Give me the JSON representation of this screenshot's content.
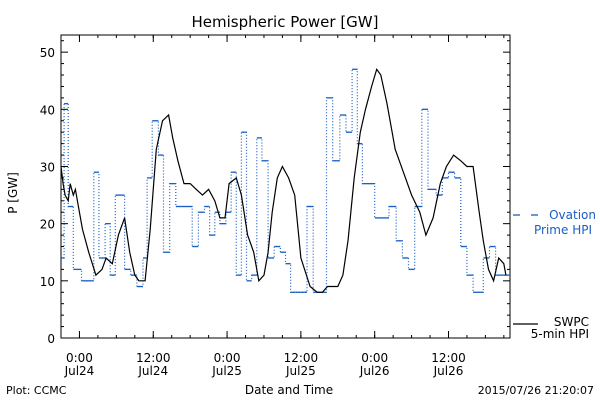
{
  "chart_data": {
    "type": "line",
    "title": "Hemispheric Power [GW]",
    "xlabel": "Date and Time",
    "ylabel": "P [GW]",
    "xlim": [
      "2015-07-23T21:00",
      "2015-07-26T22:00"
    ],
    "ylim": [
      0,
      53
    ],
    "y_ticks": [
      0,
      10,
      20,
      30,
      40,
      50
    ],
    "x_ticks": [
      {
        "t": "2015-07-24T00:00",
        "line1": "0:00",
        "line2": "Jul24"
      },
      {
        "t": "2015-07-24T12:00",
        "line1": "12:00",
        "line2": "Jul24"
      },
      {
        "t": "2015-07-25T00:00",
        "line1": "0:00",
        "line2": "Jul25"
      },
      {
        "t": "2015-07-25T12:00",
        "line1": "12:00",
        "line2": "Jul25"
      },
      {
        "t": "2015-07-26T00:00",
        "line1": "0:00",
        "line2": "Jul26"
      },
      {
        "t": "2015-07-26T12:00",
        "line1": "12:00",
        "line2": "Jul26"
      }
    ],
    "grid": false,
    "series": [
      {
        "name": "Ovation Prime HPI",
        "label_lines": [
          "Ovation",
          "Prime HPI"
        ],
        "color": "#1a5fc4",
        "style": "dotted-step",
        "x": [
          "2015-07-23T21:00",
          "2015-07-23T21:30",
          "2015-07-23T22:10",
          "2015-07-23T23:00",
          "2015-07-24T00:20",
          "2015-07-24T02:20",
          "2015-07-24T03:10",
          "2015-07-24T04:10",
          "2015-07-24T05:00",
          "2015-07-24T05:50",
          "2015-07-24T07:20",
          "2015-07-24T08:20",
          "2015-07-24T09:20",
          "2015-07-24T10:20",
          "2015-07-24T11:00",
          "2015-07-24T11:50",
          "2015-07-24T12:50",
          "2015-07-24T13:40",
          "2015-07-24T14:40",
          "2015-07-24T15:40",
          "2015-07-24T16:40",
          "2015-07-24T18:20",
          "2015-07-24T19:20",
          "2015-07-24T20:20",
          "2015-07-24T21:10",
          "2015-07-24T22:00",
          "2015-07-24T22:50",
          "2015-07-24T23:50",
          "2015-07-25T00:40",
          "2015-07-25T01:30",
          "2015-07-25T02:20",
          "2015-07-25T03:10",
          "2015-07-25T04:00",
          "2015-07-25T04:50",
          "2015-07-25T05:40",
          "2015-07-25T06:40",
          "2015-07-25T07:40",
          "2015-07-25T08:40",
          "2015-07-25T09:30",
          "2015-07-25T10:20",
          "2015-07-25T11:10",
          "2015-07-25T12:00",
          "2015-07-25T13:00",
          "2015-07-25T14:00",
          "2015-07-25T16:10",
          "2015-07-25T17:10",
          "2015-07-25T18:20",
          "2015-07-25T19:20",
          "2015-07-25T20:20",
          "2015-07-25T21:10",
          "2015-07-25T22:00",
          "2015-07-25T23:00",
          "2015-07-26T00:00",
          "2015-07-26T02:20",
          "2015-07-26T03:30",
          "2015-07-26T04:30",
          "2015-07-26T05:30",
          "2015-07-26T06:30",
          "2015-07-26T07:40",
          "2015-07-26T08:40",
          "2015-07-26T10:00",
          "2015-07-26T11:00",
          "2015-07-26T12:00",
          "2015-07-26T13:00",
          "2015-07-26T14:00",
          "2015-07-26T15:00",
          "2015-07-26T16:00",
          "2015-07-26T17:40",
          "2015-07-26T18:40",
          "2015-07-26T19:40",
          "2015-07-26T20:40",
          "2015-07-26T21:40"
        ],
        "values": [
          14,
          41,
          23,
          12,
          10,
          29,
          14,
          20,
          11,
          25,
          12,
          11,
          9,
          14,
          28,
          38,
          32,
          15,
          27,
          23,
          23,
          16,
          22,
          23,
          18,
          22,
          20,
          22,
          29,
          11,
          36,
          10,
          11,
          35,
          31,
          14,
          16,
          15,
          13,
          8,
          8,
          8,
          23,
          8,
          42,
          31,
          39,
          36,
          47,
          34,
          27,
          27,
          21,
          23,
          17,
          14,
          12,
          23,
          40,
          26,
          25,
          28,
          29,
          28,
          16,
          11,
          8,
          14,
          16,
          11,
          11,
          11
        ]
      },
      {
        "name": "SWPC 5-min HPI",
        "label_lines": [
          "SWPC",
          "5-min HPI"
        ],
        "color": "#000000",
        "style": "solid",
        "x": [
          "2015-07-23T21:00",
          "2015-07-23T21:20",
          "2015-07-23T21:40",
          "2015-07-23T22:10",
          "2015-07-23T22:30",
          "2015-07-23T23:00",
          "2015-07-23T23:20",
          "2015-07-23T23:50",
          "2015-07-24T00:30",
          "2015-07-24T01:30",
          "2015-07-24T02:40",
          "2015-07-24T03:40",
          "2015-07-24T04:20",
          "2015-07-24T05:20",
          "2015-07-24T06:20",
          "2015-07-24T07:20",
          "2015-07-24T08:10",
          "2015-07-24T09:00",
          "2015-07-24T09:40",
          "2015-07-24T10:40",
          "2015-07-24T11:30",
          "2015-07-24T12:30",
          "2015-07-24T13:30",
          "2015-07-24T14:30",
          "2015-07-24T15:10",
          "2015-07-24T16:00",
          "2015-07-24T17:00",
          "2015-07-24T18:00",
          "2015-07-24T19:00",
          "2015-07-24T20:00",
          "2015-07-24T21:00",
          "2015-07-24T22:00",
          "2015-07-24T22:50",
          "2015-07-24T23:40",
          "2015-07-25T00:20",
          "2015-07-25T01:30",
          "2015-07-25T02:20",
          "2015-07-25T03:20",
          "2015-07-25T04:20",
          "2015-07-25T05:10",
          "2015-07-25T06:00",
          "2015-07-25T06:40",
          "2015-07-25T07:20",
          "2015-07-25T08:10",
          "2015-07-25T09:00",
          "2015-07-25T10:00",
          "2015-07-25T11:00",
          "2015-07-25T12:00",
          "2015-07-25T13:30",
          "2015-07-25T14:40",
          "2015-07-25T15:30",
          "2015-07-25T16:20",
          "2015-07-25T17:10",
          "2015-07-25T18:00",
          "2015-07-25T18:50",
          "2015-07-25T19:40",
          "2015-07-25T20:40",
          "2015-07-25T21:40",
          "2015-07-25T22:30",
          "2015-07-25T23:30",
          "2015-07-26T00:20",
          "2015-07-26T01:00",
          "2015-07-26T02:00",
          "2015-07-26T03:20",
          "2015-07-26T04:40",
          "2015-07-26T06:00",
          "2015-07-26T07:20",
          "2015-07-26T08:20",
          "2015-07-26T09:30",
          "2015-07-26T10:40",
          "2015-07-26T11:40",
          "2015-07-26T12:50",
          "2015-07-26T14:00",
          "2015-07-26T15:00",
          "2015-07-26T16:00",
          "2015-07-26T17:00",
          "2015-07-26T17:40",
          "2015-07-26T18:30",
          "2015-07-26T19:20",
          "2015-07-26T20:10",
          "2015-07-26T21:00",
          "2015-07-26T21:20"
        ],
        "values": [
          30,
          27,
          25,
          24,
          27,
          25,
          26,
          23,
          19,
          15,
          11,
          12,
          14,
          13,
          18,
          21,
          15,
          11,
          10,
          10,
          19,
          33,
          38,
          39,
          35,
          31,
          27,
          27,
          26,
          25,
          26,
          24,
          21,
          21,
          27,
          28,
          25,
          18,
          15,
          10,
          11,
          15,
          22,
          28,
          30,
          28,
          25,
          14,
          9,
          8,
          8,
          9,
          9,
          9,
          11,
          17,
          28,
          36,
          40,
          44,
          47,
          46,
          41,
          33,
          29,
          25,
          22,
          18,
          21,
          27,
          30,
          32,
          31,
          30,
          30,
          22,
          17,
          12,
          10,
          14,
          13,
          11
        ]
      }
    ]
  },
  "footer": {
    "left": "Plot: CCMC",
    "right": "2015/07/26 21:20:07"
  }
}
